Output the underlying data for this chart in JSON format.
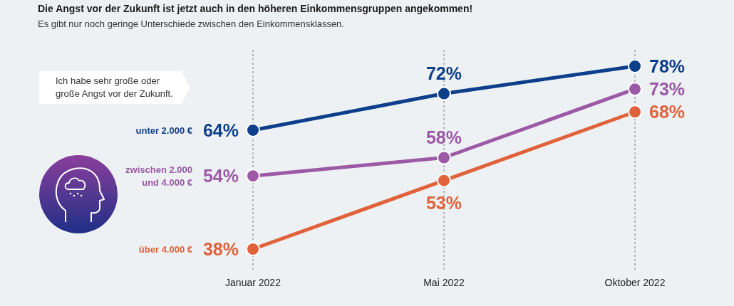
{
  "chart_data": {
    "type": "line",
    "title": "Die Angst vor der Zukunft ist jetzt auch in den höheren Einkommensgruppen angekommen!",
    "subtitle": "Es gibt nur noch geringe Unterschiede zwischen den Einkommensklassen.",
    "annotations": [
      "Ich habe sehr große oder große Angst vor der Zukunft."
    ],
    "categories": [
      "Januar 2022",
      "Mai 2022",
      "Oktober 2022"
    ],
    "series": [
      {
        "name": "unter 2.000 €",
        "color": "#0d3f8a",
        "values": [
          64,
          72,
          78
        ],
        "value_labels": [
          "64%",
          "72%",
          "78%"
        ]
      },
      {
        "name": "zwischen 2.000 und 4.000 €",
        "color": "#9b59a6",
        "values": [
          54,
          58,
          73
        ],
        "value_labels": [
          "54%",
          "58%",
          "73%"
        ]
      },
      {
        "name": "über 4.000 €",
        "color": "#e0623a",
        "values": [
          38,
          53,
          68
        ],
        "value_labels": [
          "38%",
          "53%",
          "68%"
        ]
      }
    ],
    "grid": "x",
    "marker": "circle",
    "line_style": "solid"
  }
}
